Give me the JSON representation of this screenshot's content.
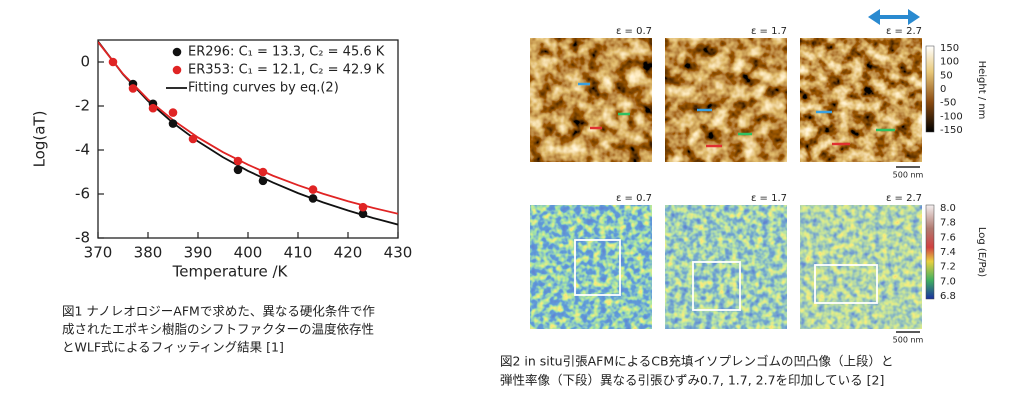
{
  "chart_data": {
    "type": "scatter",
    "xlabel": "Temperature /K",
    "ylabel": "Log(aT)",
    "xlim": [
      370,
      430
    ],
    "xticks": [
      370,
      380,
      390,
      400,
      410,
      420,
      430
    ],
    "ylim": [
      -8,
      1
    ],
    "yticks": [
      0,
      -2,
      -4,
      -6,
      -8
    ],
    "series": [
      {
        "name": "ER296: C₁ = 13.3,  C₂ = 45.6 K",
        "color": "#111111",
        "x": [
          377,
          381,
          385,
          398,
          403,
          413,
          423
        ],
        "values": [
          -1.0,
          -1.9,
          -2.8,
          -4.9,
          -5.4,
          -6.2,
          -6.9
        ]
      },
      {
        "name": "ER353: C₁ = 12.1,  C₂ = 42.9 K",
        "color": "#e02424",
        "x": [
          373,
          377,
          381,
          385,
          389,
          398,
          403,
          413,
          423
        ],
        "values": [
          0.0,
          -1.2,
          -2.1,
          -2.3,
          -3.5,
          -4.5,
          -5.0,
          -5.8,
          -6.6
        ]
      }
    ],
    "curves": {
      "name": "Fitting curves by eq.(2)",
      "lines": [
        {
          "color": "#111111",
          "x": [
            370,
            375,
            380,
            385,
            390,
            395,
            400,
            405,
            410,
            415,
            420,
            425,
            430
          ],
          "values": [
            0.94,
            -0.56,
            -1.77,
            -2.77,
            -3.61,
            -4.33,
            -4.95,
            -5.48,
            -5.96,
            -6.38,
            -6.75,
            -7.09,
            -7.39
          ]
        },
        {
          "color": "#e02424",
          "x": [
            370,
            375,
            380,
            385,
            390,
            395,
            400,
            405,
            410,
            415,
            420,
            425,
            430
          ],
          "values": [
            0.91,
            -0.54,
            -1.7,
            -2.64,
            -3.43,
            -4.1,
            -4.67,
            -5.17,
            -5.6,
            -5.99,
            -6.33,
            -6.63,
            -6.9
          ]
        }
      ]
    }
  },
  "figure1_caption": [
    "図1 ナノレオロジーAFMで求めた、異なる硬化条件で作",
    "成されたエポキシ樹脂のシフトファクターの温度依存性",
    "とWLF式によるフィッティング結果 [1]"
  ],
  "figure2": {
    "height_panels": [
      "ε = 0.7",
      "ε = 1.7",
      "ε = 2.7"
    ],
    "height_colorbar": {
      "label": "Height  / nm",
      "ticks": [
        150,
        100,
        50,
        0,
        -50,
        -100,
        -150
      ]
    },
    "height_scale_bar": "500 nm",
    "modulus_panels": [
      "ε = 0.7",
      "ε = 1.7",
      "ε = 2.7"
    ],
    "modulus_colorbar": {
      "label": "Log (E/Pa)",
      "ticks": [
        "8.0",
        "7.8",
        "7.6",
        "7.4",
        "7.2",
        "7.0",
        "6.8"
      ]
    },
    "modulus_scale_bar": "500 nm",
    "caption": [
      "図2 in situ引張AFMによるCB充填イソプレンゴムの凹凸像（上段）と",
      "弾性率像（下段）異なる引張ひずみ0.7, 1.7, 2.7を印加している [2]"
    ]
  }
}
